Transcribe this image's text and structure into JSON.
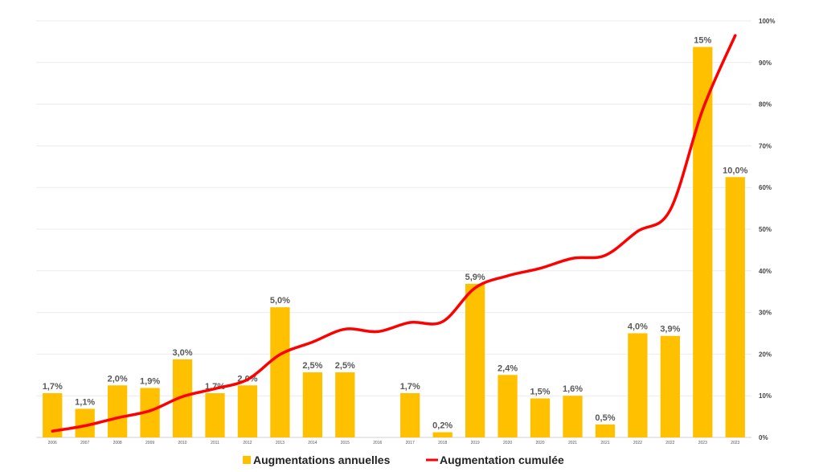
{
  "chart_data": {
    "type": "bar",
    "categories": [
      "2006",
      "2007",
      "2008",
      "2009",
      "2010",
      "2011",
      "2012",
      "2013",
      "2014",
      "2015",
      "2016",
      "2017",
      "2018",
      "2019",
      "2020",
      "2020",
      "2021",
      "2021",
      "2022",
      "2022",
      "2023",
      "2023"
    ],
    "series": [
      {
        "name": "Augmentations annuelles",
        "type": "bar",
        "axis": "left",
        "values": [
          1.7,
          1.1,
          2.0,
          1.9,
          3.0,
          1.7,
          2.0,
          5.0,
          2.5,
          2.5,
          0,
          1.7,
          0.2,
          5.9,
          2.4,
          1.5,
          1.6,
          0.5,
          4.0,
          3.9,
          15,
          10.0
        ],
        "labels": [
          "1,7%",
          "1,1%",
          "2,0%",
          "1,9%",
          "3,0%",
          "1,7%",
          "2,0%",
          "5,0%",
          "2,5%",
          "2,5%",
          "",
          "1,7%",
          "0,2%",
          "5,9%",
          "2,4%",
          "1,5%",
          "1,6%",
          "0,5%",
          "4,0%",
          "3,9%",
          "15%",
          "10,0%"
        ],
        "color": "#FFC000"
      },
      {
        "name": "Augmentation cumulée",
        "type": "line",
        "axis": "right",
        "values": [
          1.5,
          2.8,
          4.7,
          6.4,
          9.8,
          11.7,
          13.9,
          19.9,
          22.9,
          26.0,
          25.4,
          27.6,
          27.8,
          35.9,
          38.8,
          40.6,
          43.0,
          43.7,
          49.5,
          54.6,
          78.7,
          96.5
        ],
        "color": "#FF0000"
      }
    ],
    "y_right": {
      "ticks": [
        "0%",
        "10%",
        "20%",
        "30%",
        "40%",
        "50%",
        "60%",
        "70%",
        "80%",
        "90%",
        "100%"
      ],
      "ylim": [
        0,
        100
      ]
    },
    "y_left_max": 16,
    "grid": true,
    "legend": "bottom-center"
  }
}
